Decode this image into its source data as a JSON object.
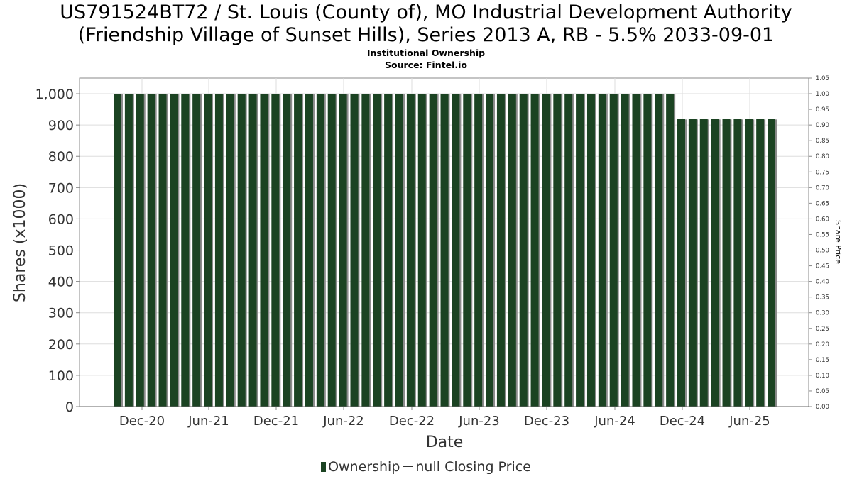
{
  "chart_data": {
    "type": "bar",
    "title_line1": "US791524BT72 / St. Louis (County of), MO Industrial Development Authority",
    "title_line2": "(Friendship Village of Sunset Hills), Series 2013 A, RB - 5.5% 2033-09-01",
    "subtitle_line1": "Institutional Ownership",
    "subtitle_line2": "Source: Fintel.io",
    "xlabel": "Date",
    "ylabel": "Shares (x1000)",
    "y2label": "Share Price",
    "ylim": [
      0,
      1050
    ],
    "y_ticks": [
      0,
      100,
      200,
      300,
      400,
      500,
      600,
      700,
      800,
      900,
      1000
    ],
    "y_tick_labels": [
      "0",
      "100",
      "200",
      "300",
      "400",
      "500",
      "600",
      "700",
      "800",
      "900",
      "1,000"
    ],
    "y2lim": [
      0,
      1.05
    ],
    "y2_tick_labels": [
      "0.00",
      "0.05",
      "0.10",
      "0.15",
      "0.20",
      "0.25",
      "0.30",
      "0.35",
      "0.40",
      "0.45",
      "0.50",
      "0.55",
      "0.60",
      "0.65",
      "0.70",
      "0.75",
      "0.80",
      "0.85",
      "0.90",
      "0.95",
      "1.00",
      "1.05"
    ],
    "x_tick_labels": [
      "Dec-20",
      "Jun-21",
      "Dec-21",
      "Jun-22",
      "Dec-22",
      "Jun-23",
      "Dec-23",
      "Jun-24",
      "Dec-24",
      "Jun-25"
    ],
    "grid": true,
    "legend_position": "bottom",
    "series": [
      {
        "name": "Ownership",
        "color": "#1b4322",
        "values": [
          1000,
          1000,
          1000,
          1000,
          1000,
          1000,
          1000,
          1000,
          1000,
          1000,
          1000,
          1000,
          1000,
          1000,
          1000,
          1000,
          1000,
          1000,
          1000,
          1000,
          1000,
          1000,
          1000,
          1000,
          1000,
          1000,
          1000,
          1000,
          1000,
          1000,
          1000,
          1000,
          1000,
          1000,
          1000,
          1000,
          1000,
          1000,
          1000,
          1000,
          1000,
          1000,
          1000,
          1000,
          1000,
          1000,
          1000,
          1000,
          1000,
          1000,
          920,
          920,
          920,
          920,
          920,
          920,
          920,
          920,
          920
        ]
      },
      {
        "name": "null Closing Price",
        "color": "#333333",
        "values": []
      }
    ]
  }
}
